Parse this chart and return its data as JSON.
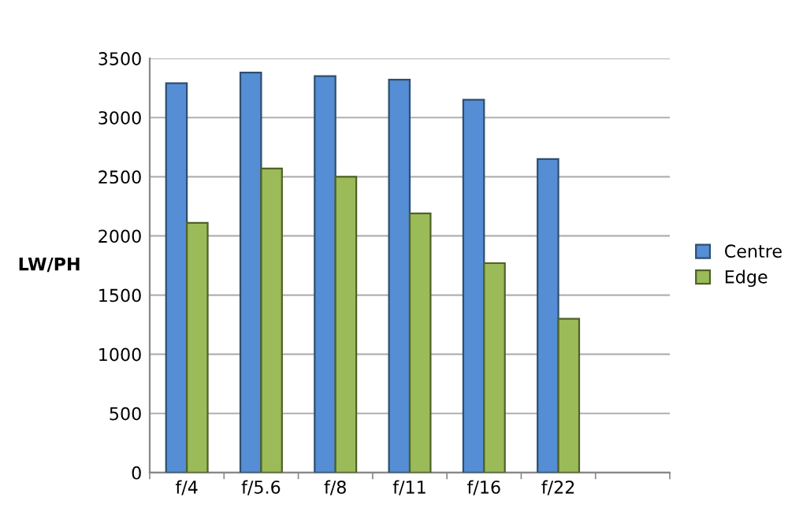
{
  "chart_data": {
    "type": "bar",
    "ylabel": "LW/PH",
    "categories": [
      "f/4",
      "f/5.6",
      "f/8",
      "f/11",
      "f/16",
      "f/22",
      null
    ],
    "series": [
      {
        "name": "Centre",
        "color": "#558ed5",
        "values": [
          3290,
          3380,
          3350,
          3320,
          3150,
          2650,
          null
        ]
      },
      {
        "name": "Edge",
        "color": "#9bbb59",
        "values": [
          2110,
          2570,
          2500,
          2190,
          1770,
          1300,
          null
        ]
      }
    ],
    "ylim": [
      0,
      3500
    ],
    "yticks": [
      0,
      500,
      1000,
      1500,
      2000,
      2500,
      3000,
      3500
    ],
    "grid": "y",
    "legend": "right"
  }
}
